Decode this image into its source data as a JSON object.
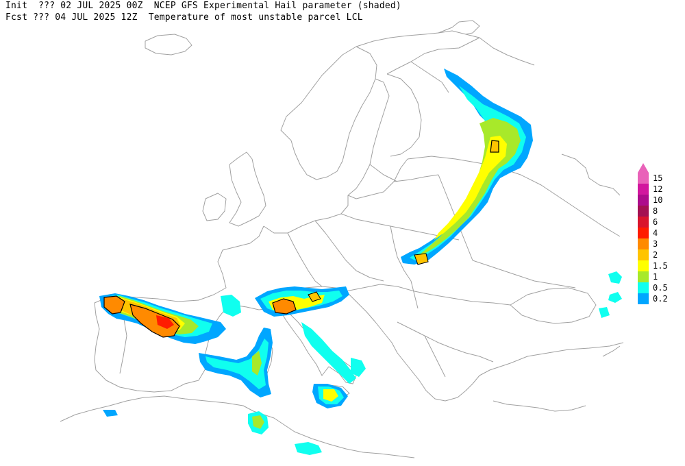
{
  "header": {
    "line1_left": "Init  ??? 02 JUL 2025 00Z",
    "line1_right": "NCEP GFS Experimental Hail parameter (shaded)",
    "line2_left": "Fcst ??? 04 JUL 2025 12Z",
    "line2_right": "Temperature of most unstable parcel LCL"
  },
  "legend": {
    "levels": [
      {
        "label": "15",
        "color": "#e962b9"
      },
      {
        "label": "12",
        "color": "#d2179e"
      },
      {
        "label": "10",
        "color": "#ad0c8c"
      },
      {
        "label": "8",
        "color": "#a41152"
      },
      {
        "label": "6",
        "color": "#d9152d"
      },
      {
        "label": "4",
        "color": "#ff1c00"
      },
      {
        "label": "3",
        "color": "#ff8a00"
      },
      {
        "label": "2",
        "color": "#ffc400"
      },
      {
        "label": "1.5",
        "color": "#ffff00"
      },
      {
        "label": "1",
        "color": "#a8e92a"
      },
      {
        "label": "0.5",
        "color": "#10ffef"
      },
      {
        "label": "0.2",
        "color": "#00a6ff"
      }
    ],
    "top_arrow_color": "#e962b9"
  },
  "map": {
    "coastline_color": "#a0a0a0",
    "contour_color": "#000000"
  }
}
